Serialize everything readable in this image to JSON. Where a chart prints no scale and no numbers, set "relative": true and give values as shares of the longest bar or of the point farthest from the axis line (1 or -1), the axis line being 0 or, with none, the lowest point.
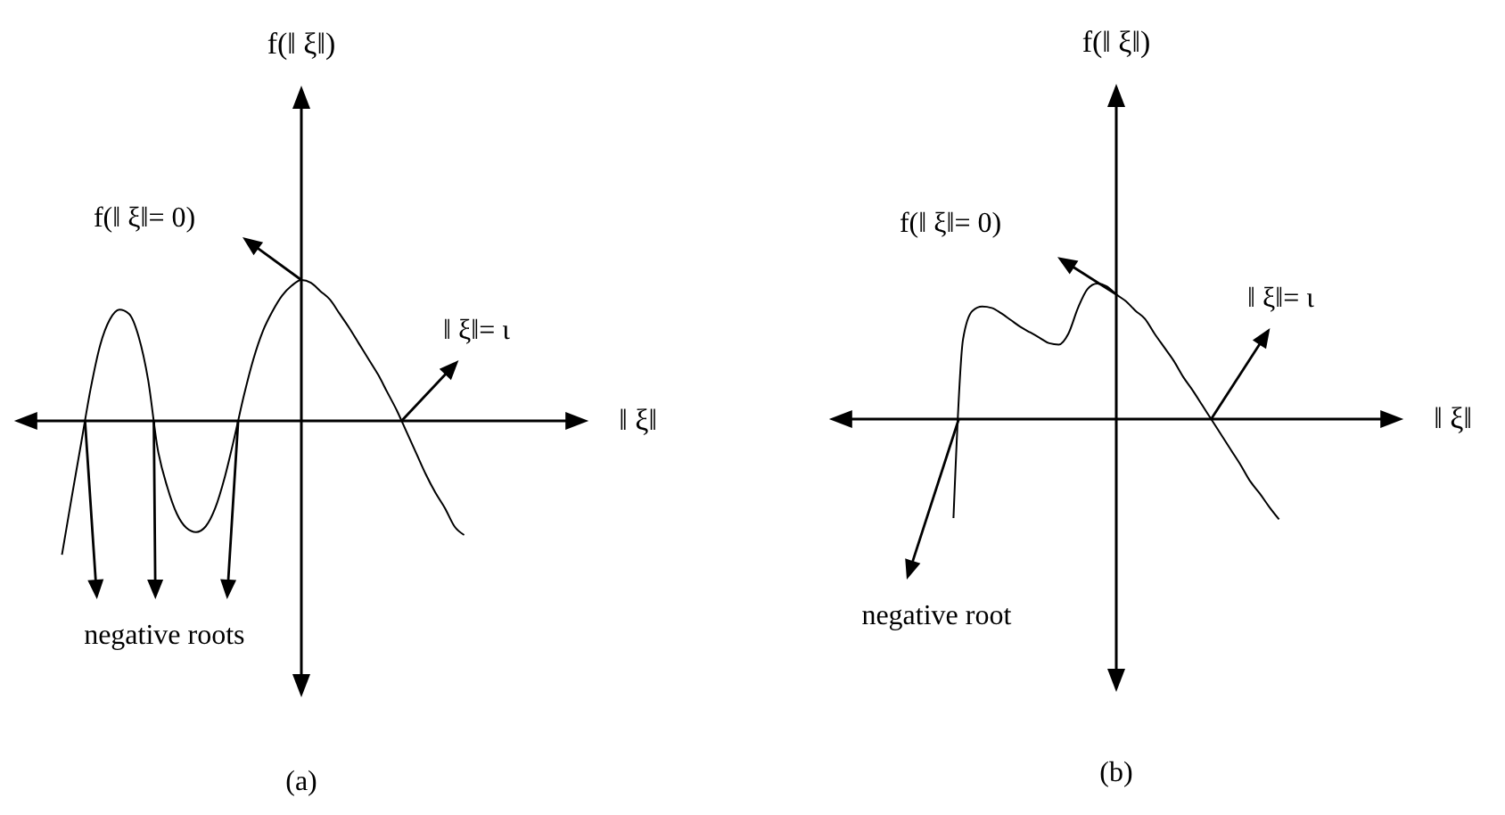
{
  "chart_data": [
    {
      "type": "line",
      "relative": true,
      "title": "(a)",
      "xlabel": "‖ ξ‖",
      "ylabel": "f(‖ ξ‖)",
      "color": "#000000",
      "categories": [
        null,
        null,
        null,
        null,
        null,
        null,
        null,
        null,
        null,
        null,
        null,
        null,
        null,
        null,
        null,
        null,
        null,
        null,
        null,
        null,
        null,
        null,
        null,
        null,
        null,
        null,
        null,
        null,
        null,
        null,
        null,
        null,
        null,
        null,
        null,
        null,
        null,
        null,
        null,
        null,
        null,
        null,
        null,
        null,
        null,
        null,
        null,
        null,
        null,
        null,
        null,
        null,
        null,
        null,
        null,
        null,
        null,
        null,
        null,
        null,
        null
      ],
      "values": [
        null,
        null,
        null,
        null,
        null,
        -0.95,
        -0.55,
        -0.16,
        0.23,
        0.54,
        0.72,
        0.79,
        0.76,
        0.6,
        0.29,
        -0.2,
        -0.47,
        -0.66,
        -0.76,
        -0.79,
        -0.75,
        -0.62,
        -0.4,
        -0.12,
        0.18,
        0.44,
        0.64,
        0.78,
        0.89,
        0.96,
        1,
        0.98,
        0.92,
        0.86,
        0.76,
        0.66,
        0.55,
        0.44,
        0.33,
        0.2,
        0.07,
        -0.08,
        -0.23,
        -0.38,
        -0.51,
        -0.62,
        -0.75,
        -0.81,
        null,
        null,
        null,
        null,
        null,
        null,
        null,
        null,
        null,
        null,
        null,
        null,
        null
      ],
      "annotations": [
        "f(‖ ξ‖= 0)",
        "‖ ξ‖= ι",
        "negative roots"
      ]
    },
    {
      "type": "line",
      "relative": true,
      "title": "(b)",
      "xlabel": "‖ ξ‖",
      "ylabel": "f(‖ ξ‖)",
      "color": "#000000",
      "categories": [
        null,
        null,
        null,
        null,
        null,
        null,
        null,
        null,
        null,
        null,
        null,
        null,
        null,
        null,
        null,
        null,
        null,
        null,
        null,
        null,
        null,
        null,
        null,
        null,
        null,
        null,
        null,
        null,
        null,
        null,
        null,
        null,
        null,
        null,
        null,
        null,
        null,
        null,
        null,
        null,
        null,
        null,
        null,
        null,
        null,
        null,
        null,
        null,
        null,
        null,
        null,
        null,
        null,
        null,
        null,
        null,
        null,
        null,
        null,
        null,
        null
      ],
      "values": [
        null,
        null,
        null,
        null,
        null,
        null,
        null,
        null,
        null,
        null,
        null,
        null,
        null,
        -0.73,
        0.59,
        0.8,
        0.83,
        0.82,
        0.78,
        0.73,
        0.68,
        0.64,
        0.6,
        0.56,
        0.55,
        0.63,
        0.82,
        0.96,
        1,
        0.98,
        0.92,
        0.87,
        0.8,
        0.74,
        0.63,
        0.53,
        0.43,
        0.31,
        0.21,
        0.1,
        -0.01,
        -0.12,
        -0.23,
        -0.34,
        -0.46,
        -0.55,
        -0.65,
        -0.74,
        null,
        null,
        null,
        null,
        null,
        null,
        null,
        null,
        null,
        null,
        null,
        null,
        null
      ],
      "annotations": [
        "f(‖ ξ‖= 0)",
        "‖ ξ‖= ι",
        "negative root"
      ]
    }
  ]
}
